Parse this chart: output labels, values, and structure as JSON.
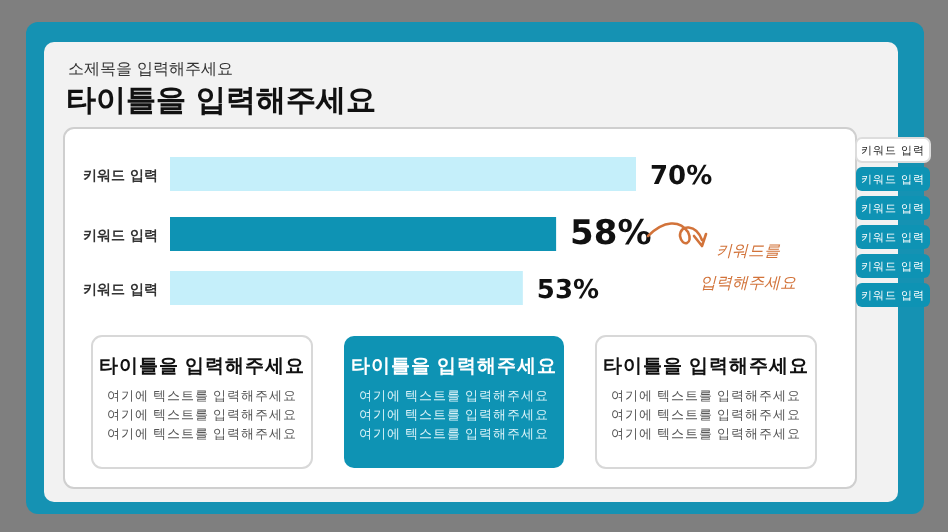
{
  "chart_data": [
    {
      "type": "bar",
      "orientation": "horizontal",
      "subtitle": "소제목을 입력해주세요",
      "title": "타이틀을 입력해주세요",
      "categories": [
        "키워드 입력",
        "키워드 입력",
        "키워드 입력"
      ],
      "values": [
        70,
        58,
        53
      ],
      "colors": [
        "#c5effa",
        "#0e93b4",
        "#c5effa"
      ],
      "data_labels": true,
      "value_labels": [
        "70%",
        "58%",
        "53%"
      ],
      "annotations": [
        "키워드를 입력해주세요"
      ]
    },
    {
      "type": "other",
      "annotations": [
        "키워드 입력",
        "키워드 입력",
        "키워드 입력",
        "키워드 입력",
        "키워드 입력",
        "키워드 입력"
      ]
    },
    {
      "type": "other",
      "title": "타이틀을 입력해주세요",
      "color": "#ffffff",
      "annotations": [
        "여기에 텍스트를 입력해주세요",
        "여기에 텍스트를 입력해주세요",
        "여기에 텍스트를 입력해주세요"
      ]
    },
    {
      "type": "other",
      "title": "타이틀을 입력해주세요",
      "color": "#0e93b4",
      "annotations": [
        "여기에 텍스트를 입력해주세요",
        "여기에 텍스트를 입력해주세요",
        "여기에 텍스트를 입력해주세요"
      ]
    },
    {
      "type": "other",
      "title": "타이틀을 입력해주세요",
      "color": "#ffffff",
      "annotations": [
        "여기에 텍스트를 입력해주세요",
        "여기에 텍스트를 입력해주세요",
        "여기에 텍스트를 입력해주세요"
      ]
    }
  ]
}
